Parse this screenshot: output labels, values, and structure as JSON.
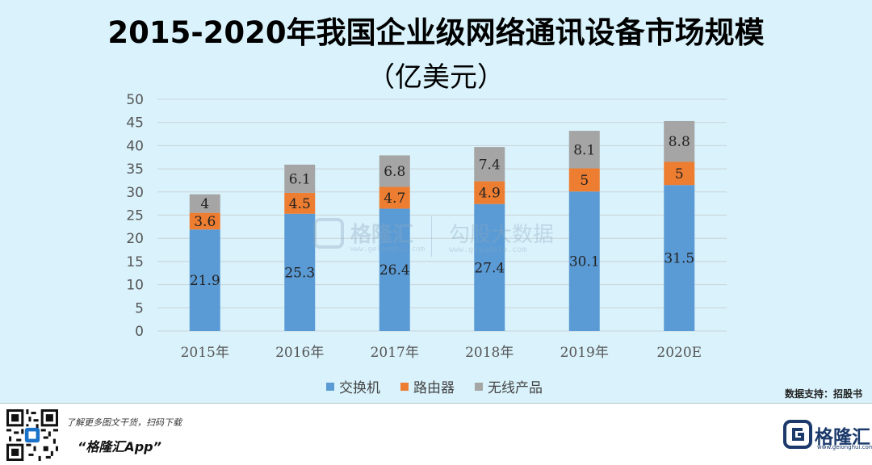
{
  "chart_data": {
    "type": "bar",
    "stacked": true,
    "title": "2015-2020年我国企业级网络通讯设备市场规模",
    "subtitle": "（亿美元）",
    "categories": [
      "2015年",
      "2016年",
      "2017年",
      "2018年",
      "2019年",
      "2020E"
    ],
    "series": [
      {
        "name": "交换机",
        "color": "#5b9bd5",
        "values": [
          21.9,
          25.3,
          26.4,
          27.4,
          30.1,
          31.5
        ]
      },
      {
        "name": "路由器",
        "color": "#ed7d31",
        "values": [
          3.6,
          4.5,
          4.7,
          4.9,
          5,
          5
        ]
      },
      {
        "name": "无线产品",
        "color": "#a5a5a5",
        "values": [
          4,
          6.1,
          6.8,
          7.4,
          8.1,
          8.8
        ]
      }
    ],
    "ylim": [
      0,
      50
    ],
    "yticks": [
      0,
      5,
      10,
      15,
      20,
      25,
      30,
      35,
      40,
      45,
      50
    ],
    "grid": true,
    "legend": "bottom",
    "data_labels": true
  },
  "watermark": {
    "brand": "格隆汇",
    "brand_url": "www.gelonghui.com",
    "partner": "勾股大数据",
    "partner_url": "www.gogudata.com"
  },
  "source": "数据支持：招股书",
  "footer": {
    "promo": "了解更多图文干货，扫码下载",
    "app_name": "“格隆汇App”",
    "brand": "格隆汇",
    "brand_url": "www.gelonghui.com"
  }
}
